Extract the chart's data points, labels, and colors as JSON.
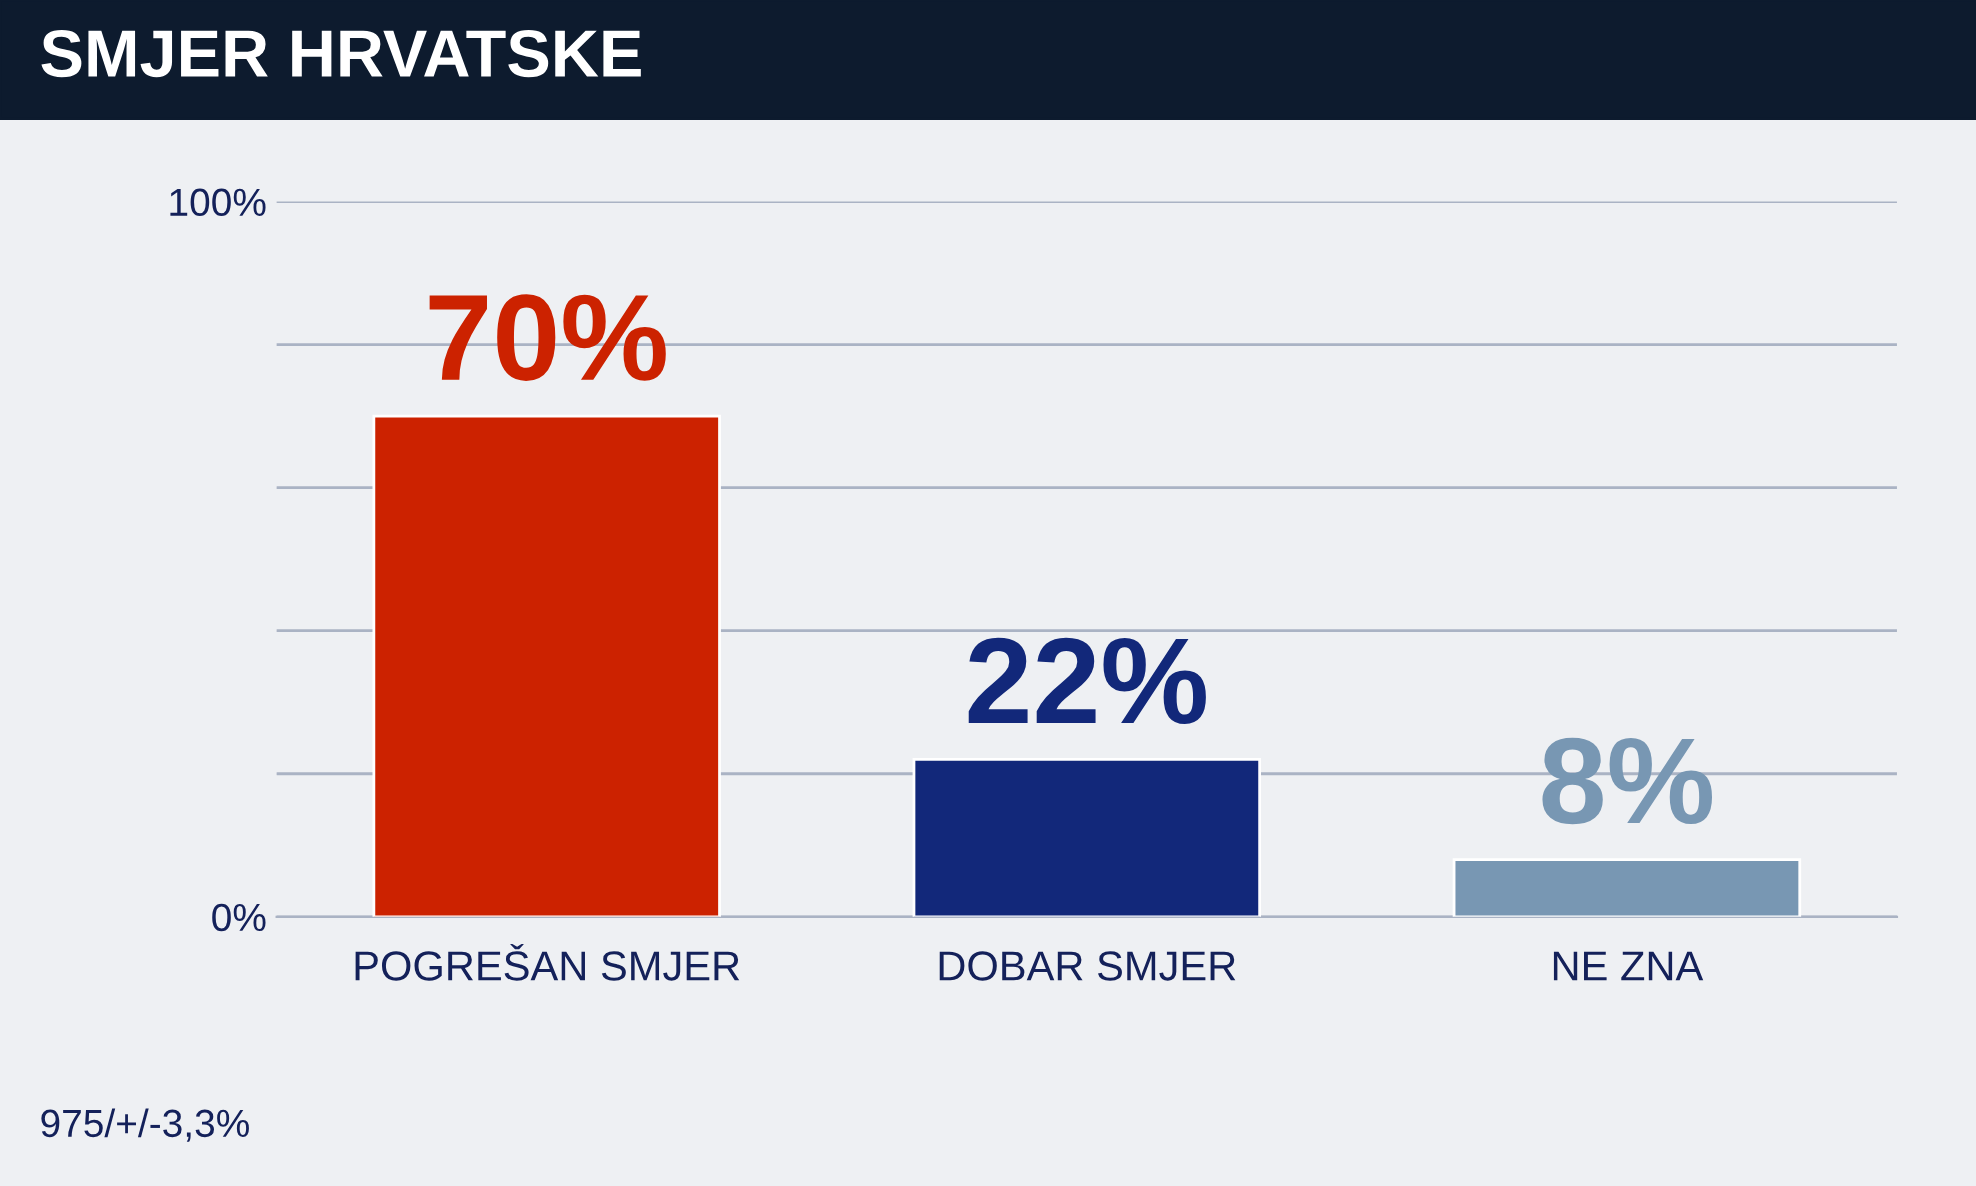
{
  "chart_data": {
    "type": "bar",
    "title": "SMJER HRVATSKE",
    "categories": [
      "POGREŠAN SMJER",
      "DOBAR SMJER",
      "NE ZNA"
    ],
    "values": [
      70,
      22,
      8
    ],
    "colors": [
      "#cc2200",
      "#12287a",
      "#7897b3"
    ],
    "value_labels": [
      "70%",
      "22%",
      "8%"
    ],
    "ylim": [
      0,
      100
    ],
    "yticks": [
      {
        "value": 0,
        "label": "0%"
      },
      {
        "value": 20,
        "label": null
      },
      {
        "value": 40,
        "label": null
      },
      {
        "value": 60,
        "label": null
      },
      {
        "value": 80,
        "label": null
      },
      {
        "value": 100,
        "label": "100%"
      }
    ],
    "grid": "y",
    "annotations": [
      "975/+/-3,3%"
    ]
  }
}
